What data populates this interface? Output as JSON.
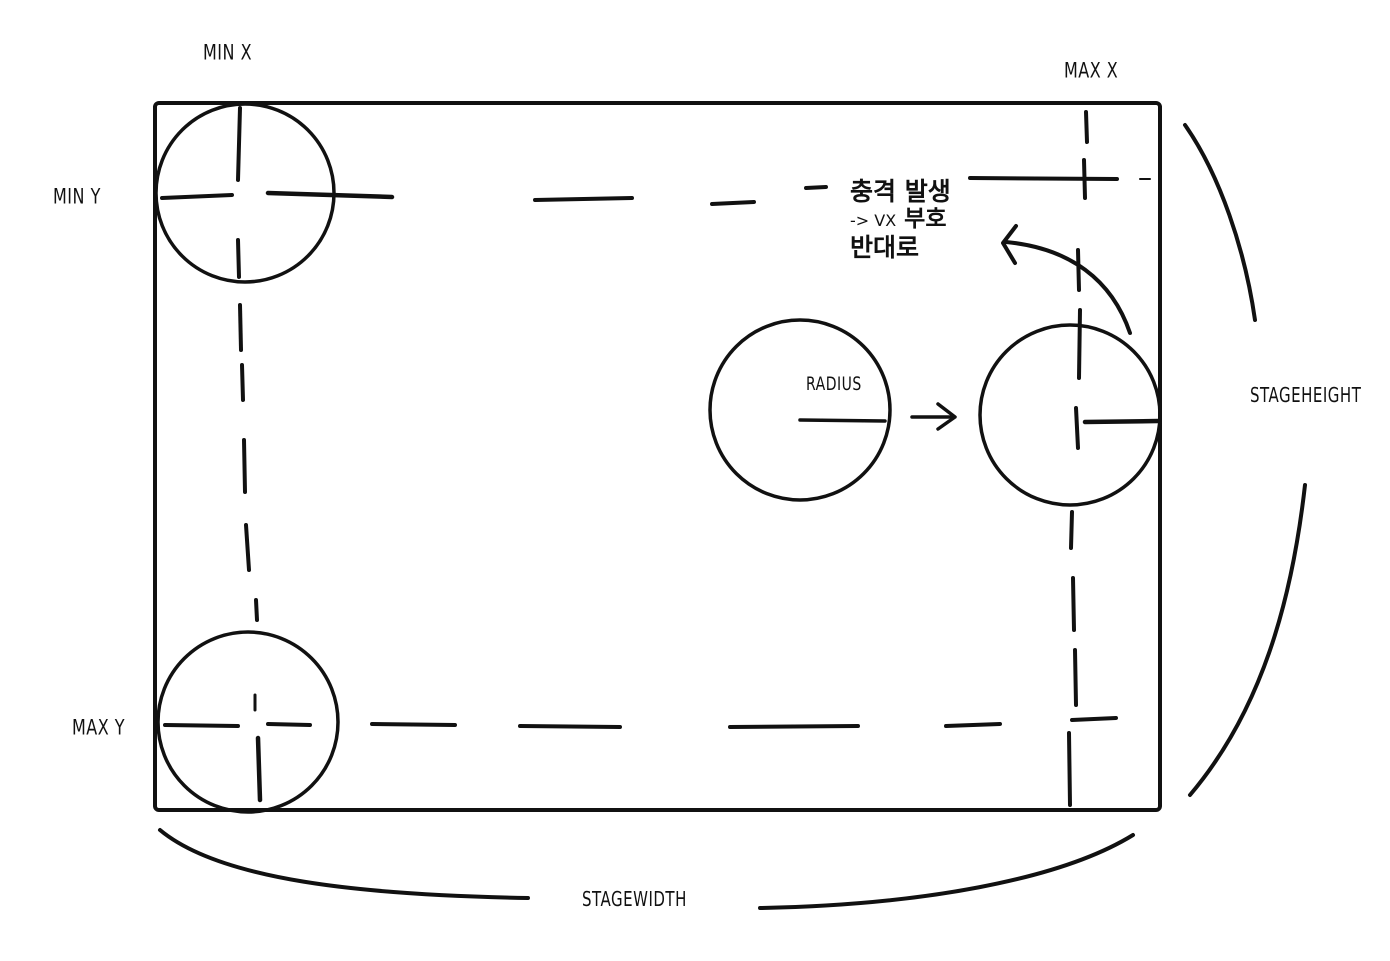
{
  "labels": {
    "min_x": "MIN X",
    "max_x": "MAX X",
    "min_y": "MIN Y",
    "max_y": "MAX Y",
    "radius": "RADIUS",
    "stage_height": "STAGEHEIGHT",
    "stage_width": "STAGEWIDTH"
  },
  "note": {
    "line1": "충격 발생",
    "line2_prefix": "-> VX",
    "line2_suffix": " 부호",
    "line3": "반대로"
  },
  "colors": {
    "ink": "#111111",
    "background": "#ffffff"
  }
}
